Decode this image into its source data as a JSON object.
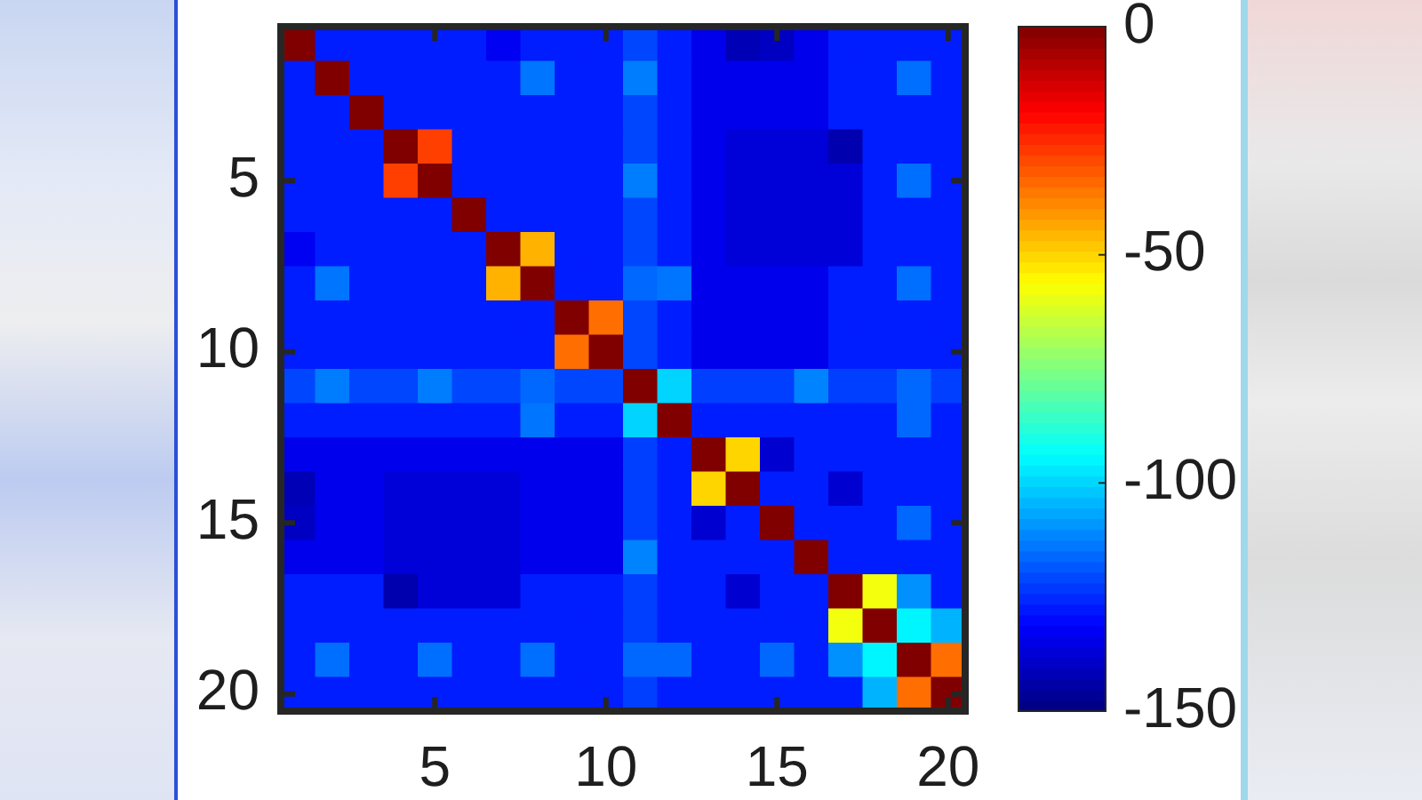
{
  "chart_data": {
    "type": "heatmap",
    "categories": [
      null,
      null,
      null,
      null,
      "5",
      null,
      null,
      null,
      null,
      "10",
      null,
      null,
      null,
      null,
      "15",
      null,
      null,
      null,
      null,
      "20"
    ],
    "y_categories": [
      null,
      null,
      null,
      null,
      "5",
      null,
      null,
      null,
      null,
      "10",
      null,
      null,
      null,
      null,
      "15",
      null,
      null,
      null,
      null,
      "20"
    ],
    "cells": [
      [
        0,
        -127,
        -127,
        -127,
        -127,
        -127,
        -133,
        -127,
        -127,
        -127,
        -121,
        -127,
        -134,
        -142,
        -140,
        -134,
        -127,
        -127,
        -127,
        -127
      ],
      [
        -127,
        0,
        -127,
        -127,
        -127,
        -127,
        -127,
        -114,
        -127,
        -127,
        -113,
        -127,
        -134,
        -134,
        -134,
        -134,
        -127,
        -127,
        -115,
        -127
      ],
      [
        -127,
        -127,
        0,
        -127,
        -127,
        -127,
        -127,
        -127,
        -127,
        -127,
        -121,
        -127,
        -134,
        -134,
        -134,
        -134,
        -127,
        -127,
        -127,
        -127
      ],
      [
        -127,
        -127,
        -127,
        0,
        -28,
        -127,
        -127,
        -127,
        -127,
        -127,
        -121,
        -127,
        -134,
        -137,
        -137,
        -137,
        -143,
        -127,
        -127,
        -127
      ],
      [
        -127,
        -127,
        -127,
        -28,
        0,
        -127,
        -127,
        -127,
        -127,
        -127,
        -113,
        -127,
        -134,
        -137,
        -137,
        -137,
        -137,
        -127,
        -115,
        -127
      ],
      [
        -127,
        -127,
        -127,
        -127,
        -127,
        0,
        -127,
        -127,
        -127,
        -127,
        -121,
        -127,
        -134,
        -137,
        -137,
        -137,
        -137,
        -127,
        -127,
        -127
      ],
      [
        -133,
        -127,
        -127,
        -127,
        -127,
        -127,
        0,
        -45,
        -127,
        -127,
        -121,
        -127,
        -134,
        -137,
        -137,
        -137,
        -137,
        -127,
        -127,
        -127
      ],
      [
        -127,
        -114,
        -127,
        -127,
        -127,
        -127,
        -45,
        0,
        -127,
        -127,
        -116,
        -114,
        -134,
        -134,
        -134,
        -134,
        -127,
        -127,
        -115,
        -127
      ],
      [
        -127,
        -127,
        -127,
        -127,
        -127,
        -127,
        -127,
        -127,
        0,
        -35,
        -121,
        -127,
        -134,
        -134,
        -134,
        -134,
        -127,
        -127,
        -127,
        -127
      ],
      [
        -127,
        -127,
        -127,
        -127,
        -127,
        -127,
        -127,
        -127,
        -35,
        0,
        -121,
        -127,
        -134,
        -134,
        -134,
        -134,
        -127,
        -127,
        -127,
        -127
      ],
      [
        -121,
        -113,
        -121,
        -121,
        -113,
        -121,
        -121,
        -116,
        -121,
        -121,
        0,
        -100,
        -122,
        -122,
        -122,
        -112,
        -122,
        -122,
        -116,
        -122
      ],
      [
        -127,
        -127,
        -127,
        -127,
        -127,
        -127,
        -127,
        -114,
        -127,
        -127,
        -100,
        0,
        -127,
        -127,
        -127,
        -127,
        -127,
        -127,
        -116,
        -127
      ],
      [
        -134,
        -134,
        -134,
        -134,
        -134,
        -134,
        -134,
        -134,
        -134,
        -134,
        -122,
        -127,
        0,
        -50,
        -138,
        -127,
        -127,
        -127,
        -127,
        -127
      ],
      [
        -142,
        -134,
        -134,
        -137,
        -137,
        -137,
        -137,
        -134,
        -134,
        -134,
        -122,
        -127,
        -50,
        0,
        -127,
        -127,
        -138,
        -127,
        -127,
        -127
      ],
      [
        -140,
        -134,
        -134,
        -137,
        -137,
        -137,
        -137,
        -134,
        -134,
        -134,
        -122,
        -127,
        -138,
        -127,
        0,
        -127,
        -127,
        -127,
        -116,
        -127
      ],
      [
        -134,
        -134,
        -134,
        -137,
        -137,
        -137,
        -137,
        -134,
        -134,
        -134,
        -112,
        -127,
        -127,
        -127,
        -127,
        0,
        -127,
        -127,
        -127,
        -127
      ],
      [
        -127,
        -127,
        -127,
        -143,
        -137,
        -137,
        -137,
        -127,
        -127,
        -127,
        -122,
        -127,
        -127,
        -138,
        -127,
        -127,
        0,
        -58,
        -110,
        -127
      ],
      [
        -127,
        -127,
        -127,
        -127,
        -127,
        -127,
        -127,
        -127,
        -127,
        -127,
        -122,
        -127,
        -127,
        -127,
        -127,
        -127,
        -58,
        0,
        -95,
        -105
      ],
      [
        -127,
        -115,
        -127,
        -127,
        -115,
        -127,
        -127,
        -115,
        -127,
        -127,
        -116,
        -116,
        -127,
        -127,
        -116,
        -127,
        -110,
        -95,
        0,
        -35
      ],
      [
        -127,
        -127,
        -127,
        -127,
        -127,
        -127,
        -127,
        -127,
        -127,
        -127,
        -122,
        -127,
        -127,
        -127,
        -127,
        -127,
        -127,
        -105,
        -35,
        0
      ]
    ],
    "clim": [
      -150,
      0
    ],
    "cticks": [
      -150,
      -100,
      -50,
      0
    ]
  }
}
